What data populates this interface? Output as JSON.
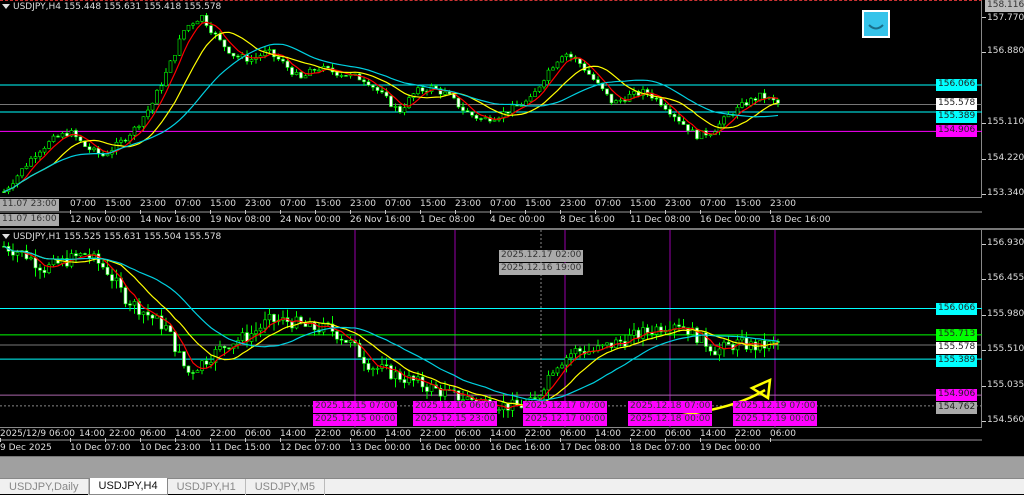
{
  "top_chart": {
    "header": "USDJPY,H4  155.448 155.631 155.418 155.578",
    "axis_scale": {
      "max": 158.116,
      "min": 153.34
    },
    "ticks": [
      "157.770",
      "156.880",
      "155.110",
      "154.220",
      "153.340"
    ],
    "top_label": "158.116",
    "levels": [
      {
        "price": 156.066,
        "label": "156.066",
        "color": "#00ffff"
      },
      {
        "price": 155.578,
        "label": "155.578",
        "color": "#ffffff",
        "line": "#777777"
      },
      {
        "price": 155.389,
        "label": "155.389",
        "color": "#00ffff"
      },
      {
        "price": 154.906,
        "label": "154.906",
        "color": "#ff00ff"
      }
    ],
    "time_row1": [
      "07:00",
      "15:00",
      "23:00",
      "07:00",
      "15:00",
      "23:00",
      "07:00",
      "15:00",
      "23:00",
      "07:00",
      "15:00",
      "23:00",
      "07:00",
      "15:00",
      "23:00",
      "07:00",
      "15:00",
      "23:00",
      "07:00",
      "15:00",
      "23:00"
    ],
    "time_row2": [
      "12 Nov 00:00",
      "14 Nov 16:00",
      "19 Nov 08:00",
      "24 Nov 00:00",
      "26 Nov 16:00",
      "1 Dec 08:00",
      "4 Dec 00:00",
      "8 Dec 16:00",
      "11 Dec 08:00",
      "16 Dec 00:00",
      "18 Dec 16:00"
    ],
    "cursor_time1": "11.07 23:00",
    "cursor_time2": "11.07 16:00",
    "price_path": [
      153.4,
      153.9,
      154.4,
      154.7,
      154.9,
      154.5,
      154.3,
      154.6,
      155.0,
      155.6,
      156.5,
      157.5,
      157.8,
      157.2,
      156.8,
      156.7,
      156.9,
      156.6,
      156.2,
      156.5,
      156.4,
      156.3,
      156.2,
      155.8,
      155.4,
      155.9,
      156.0,
      155.8,
      155.4,
      155.2,
      155.3,
      155.5,
      155.7,
      156.4,
      156.9,
      156.6,
      156.1,
      155.6,
      155.8,
      155.9,
      155.6,
      155.2,
      154.8,
      154.9,
      155.3,
      155.6,
      155.8,
      155.6
    ]
  },
  "bottom_chart": {
    "header": "USDJPY,H1  155.525 155.631 155.504 155.578",
    "axis_scale": {
      "max": 156.93,
      "min": 154.56
    },
    "ticks": [
      "156.930",
      "156.455",
      "155.980",
      "155.510",
      "155.035",
      "154.560"
    ],
    "levels": [
      {
        "price": 156.066,
        "label": "156.066",
        "color": "#00ffff"
      },
      {
        "price": 155.713,
        "label": "155.713",
        "color": "#00ff00"
      },
      {
        "price": 155.578,
        "label": "155.578",
        "color": "#ffffff",
        "line": "#777777"
      },
      {
        "price": 155.389,
        "label": "155.389",
        "color": "#00ffff"
      },
      {
        "price": 154.906,
        "label": "154.906",
        "color": "#ff00ff",
        "line": "#aa66aa"
      },
      {
        "price": 154.762,
        "label": "154.762",
        "color": "#aaaaaa",
        "line": "#888888",
        "dotted": true
      }
    ],
    "time_row1": [
      "2025/12/9 06:00",
      "14:00",
      "22:00",
      "06:00",
      "14:00",
      "22:00",
      "06:00",
      "14:00",
      "22:00",
      "06:00",
      "14:00",
      "22:00",
      "06:00",
      "14:00",
      "22:00",
      "06:00",
      "14:00",
      "22:00",
      "06:00",
      "14:00",
      "22:00",
      "06:00"
    ],
    "time_row2": [
      "9 Dec 2025",
      "10 Dec 07:00",
      "10 Dec 23:00",
      "11 Dec 15:00",
      "12 Dec 07:00",
      "13 Dec 00:00",
      "16 Dec 00:00",
      "16 Dec 16:00",
      "17 Dec 08:00",
      "18 Dec 07:00",
      "19 Dec 00:00"
    ],
    "markers_row1": [
      "2025.12.15 07:00",
      "2025.12.16 06:00",
      "2025.12.17 07:00",
      "2025.12.18 07:00",
      "2025.12.19 07:00"
    ],
    "markers_row2": [
      "2025.12.15 00:00",
      "2025.12.15 23:00",
      "2025.12.17 00:00",
      "2025.12.18 00:00",
      "2025.12.19 00:00"
    ],
    "cursor_row1": "2025.12.17 02:00",
    "cursor_row2": "2025.12.16 19:00",
    "price_path": [
      156.9,
      156.8,
      156.6,
      156.7,
      156.8,
      156.6,
      156.2,
      156.0,
      155.8,
      155.2,
      155.4,
      155.6,
      155.7,
      155.9,
      155.9,
      155.8,
      155.8,
      155.6,
      155.3,
      155.2,
      155.1,
      155.0,
      154.9,
      154.85,
      154.8,
      154.75,
      154.8,
      155.3,
      155.5,
      155.5,
      155.6,
      155.7,
      155.8,
      155.9,
      155.7,
      155.5,
      155.6,
      155.55,
      155.6
    ]
  },
  "colors": {
    "bull": "#ffffff",
    "wick": "#00ff00",
    "ma_fast": "#ff0000",
    "ma_mid": "#ffff00",
    "ma_slow": "#00d0e0",
    "vline": "#9900aa",
    "annotation": "#ffff00"
  },
  "annotation_icon": "smiley-face-icon",
  "tabs": [
    {
      "label": "USDJPY,Daily",
      "active": false
    },
    {
      "label": "USDJPY,H4",
      "active": true
    },
    {
      "label": "USDJPY,H1",
      "active": false
    },
    {
      "label": "USDJPY,M5",
      "active": false
    }
  ]
}
